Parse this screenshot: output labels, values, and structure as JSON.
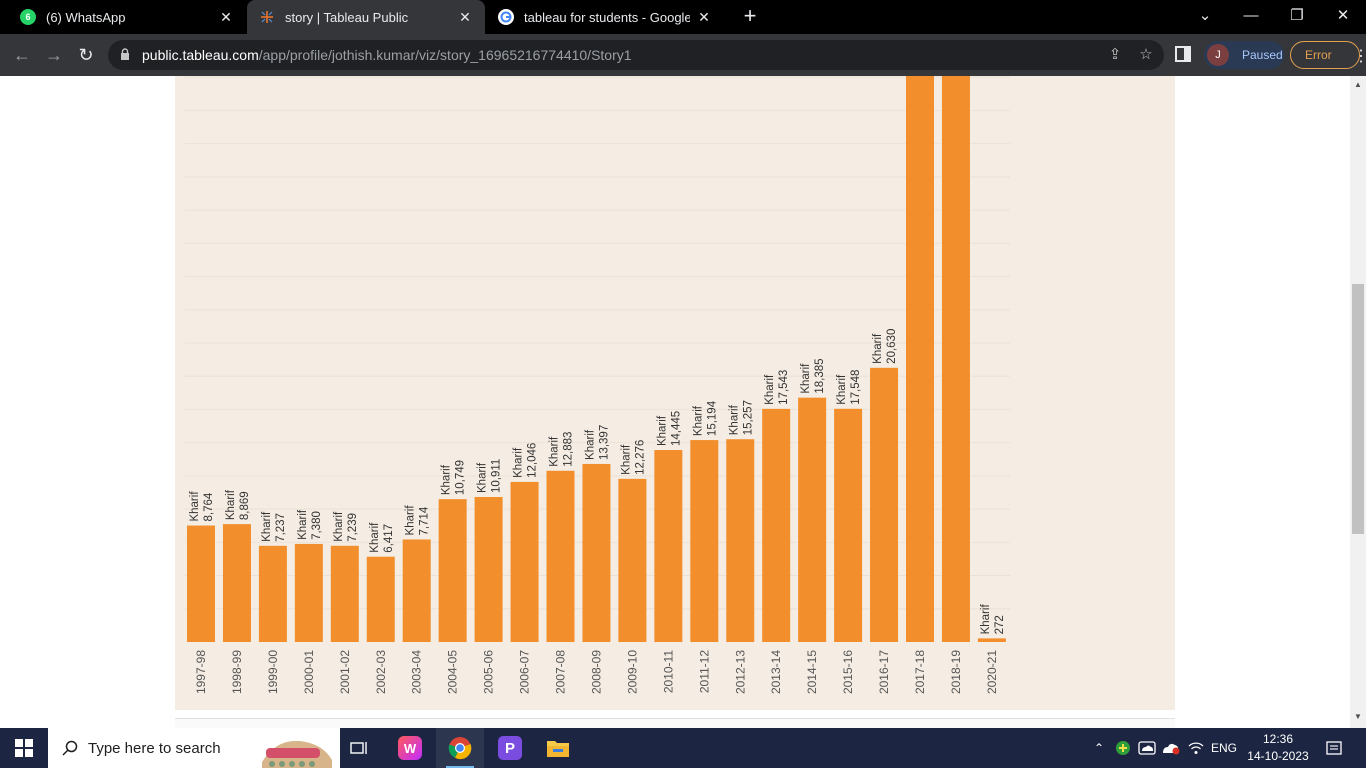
{
  "browser": {
    "tabs": [
      {
        "title": "(6) WhatsApp",
        "badge": "6",
        "icon": "whatsapp-icon",
        "color": "#25d366"
      },
      {
        "title": "story | Tableau Public",
        "icon": "tableau-icon",
        "color": "#e8762d"
      },
      {
        "title": "tableau for students - Google Se",
        "icon": "google-icon",
        "color": "#4285f4"
      }
    ],
    "url_host": "public.tableau.com",
    "url_path": "/app/profile/jothish.kumar/viz/story_16965216774410/Story1",
    "profile_initial": "J",
    "profile_status": "Paused",
    "error_label": "Error"
  },
  "chart_data": {
    "type": "bar",
    "color": "#f28e2b",
    "background": "#f5ede3",
    "season": "Kharif",
    "categories": [
      "1997-98",
      "1998-99",
      "1999-00",
      "2000-01",
      "2001-02",
      "2002-03",
      "2003-04",
      "2004-05",
      "2005-06",
      "2006-07",
      "2007-08",
      "2008-09",
      "2009-10",
      "2010-11",
      "2011-12",
      "2012-13",
      "2013-14",
      "2014-15",
      "2015-16",
      "2016-17",
      "2017-18",
      "2018-19",
      "2020-21"
    ],
    "values": [
      8764,
      8869,
      7237,
      7380,
      7239,
      6417,
      7714,
      10749,
      10911,
      12046,
      12883,
      13397,
      12276,
      14445,
      15194,
      15257,
      17543,
      18385,
      17548,
      20630,
      null,
      null,
      272
    ],
    "value_labels": [
      "8,764",
      "8,869",
      "7,237",
      "7,380",
      "7,239",
      "6,417",
      "7,714",
      "10,749",
      "10,911",
      "12,046",
      "12,883",
      "13,397",
      "12,276",
      "14,445",
      "15,194",
      "15,257",
      "17,543",
      "18,385",
      "17,548",
      "20,630",
      "",
      "",
      "272"
    ],
    "clipped_above_view": [
      false,
      false,
      false,
      false,
      false,
      false,
      false,
      false,
      false,
      false,
      false,
      false,
      false,
      false,
      false,
      false,
      false,
      false,
      false,
      false,
      true,
      true,
      false
    ],
    "grid": true
  },
  "taskbar": {
    "search_placeholder": "Type here to search",
    "language": "ENG",
    "time": "12:36",
    "date": "14-10-2023"
  }
}
